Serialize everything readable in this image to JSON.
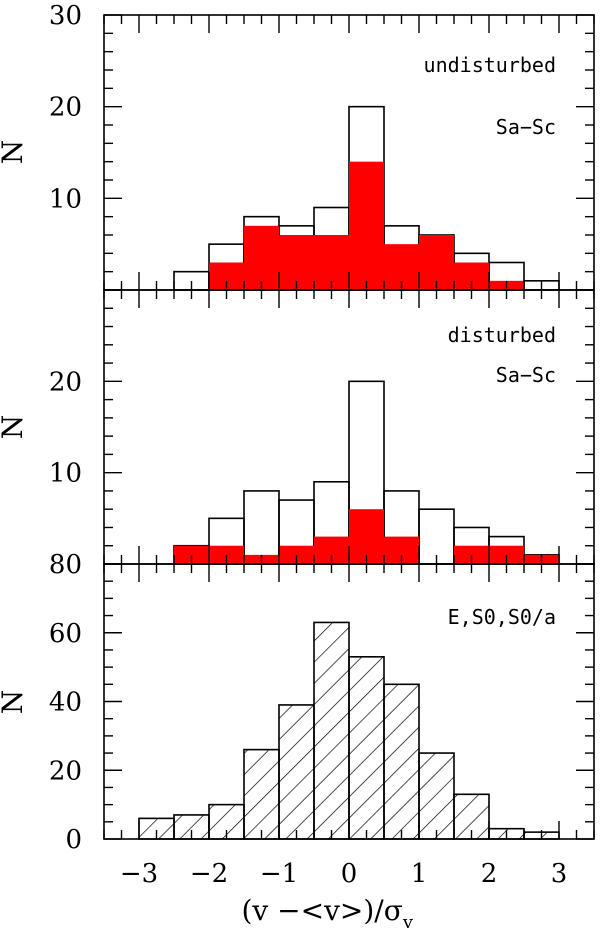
{
  "chart_data": [
    {
      "type": "bar",
      "panel": "top",
      "annotations": [
        "undisturbed",
        "Sa−Sc"
      ],
      "ylabel": "N",
      "ylim": [
        0,
        30
      ],
      "yticks": [
        "30",
        "20",
        "10"
      ],
      "bin_edges": [
        -3,
        -2.5,
        -2,
        -1.5,
        -1,
        -0.5,
        0,
        0.5,
        1,
        1.5,
        2,
        2.5,
        3
      ],
      "series": [
        {
          "name": "",
          "style": "outline",
          "values": [
            0,
            2,
            5,
            8,
            7,
            9,
            20,
            7,
            6,
            4,
            3,
            1
          ]
        },
        {
          "name": "",
          "style": "filled",
          "color": "#ff0000",
          "values": [
            0,
            0,
            3,
            7,
            6,
            6,
            14,
            5,
            6,
            3,
            1,
            0
          ]
        }
      ]
    },
    {
      "type": "bar",
      "panel": "middle",
      "annotations": [
        "disturbed",
        "Sa−Sc"
      ],
      "ylabel": "N",
      "ylim": [
        0,
        30
      ],
      "yticks": [
        "20",
        "10"
      ],
      "bin_edges": [
        -3,
        -2.5,
        -2,
        -1.5,
        -1,
        -0.5,
        0,
        0.5,
        1,
        1.5,
        2,
        2.5,
        3
      ],
      "series": [
        {
          "name": "",
          "style": "outline",
          "values": [
            0,
            2,
            5,
            8,
            7,
            9,
            20,
            8,
            6,
            4,
            3,
            1
          ]
        },
        {
          "name": "",
          "style": "filled",
          "color": "#ff0000",
          "values": [
            0,
            2,
            2,
            1,
            2,
            3,
            6,
            3,
            0,
            2,
            2,
            1
          ]
        }
      ]
    },
    {
      "type": "bar",
      "panel": "bottom",
      "annotations": [
        "E,S0,S0/a"
      ],
      "ylabel": "N",
      "ylim": [
        0,
        80
      ],
      "yticks": [
        "80",
        "60",
        "40",
        "20",
        "0"
      ],
      "bin_edges": [
        -3,
        -2.5,
        -2,
        -1.5,
        -1,
        -0.5,
        0,
        0.5,
        1,
        1.5,
        2,
        2.5,
        3
      ],
      "series": [
        {
          "name": "",
          "style": "hatched",
          "values": [
            6,
            7,
            10,
            26,
            39,
            63,
            53,
            45,
            25,
            13,
            3,
            2
          ]
        }
      ]
    }
  ],
  "x_axis": {
    "xlim": [
      -3.5,
      3.5
    ],
    "tick_values": [
      -3,
      -2,
      -1,
      0,
      1,
      2,
      3
    ],
    "tick_labels": [
      "−3",
      "−2",
      "−1",
      "0",
      "1",
      "2",
      "3"
    ],
    "label": "(v −<v>)/σ",
    "label_subscript": "v"
  },
  "colors": {
    "fill": "#ff0000",
    "line": "#000000"
  }
}
